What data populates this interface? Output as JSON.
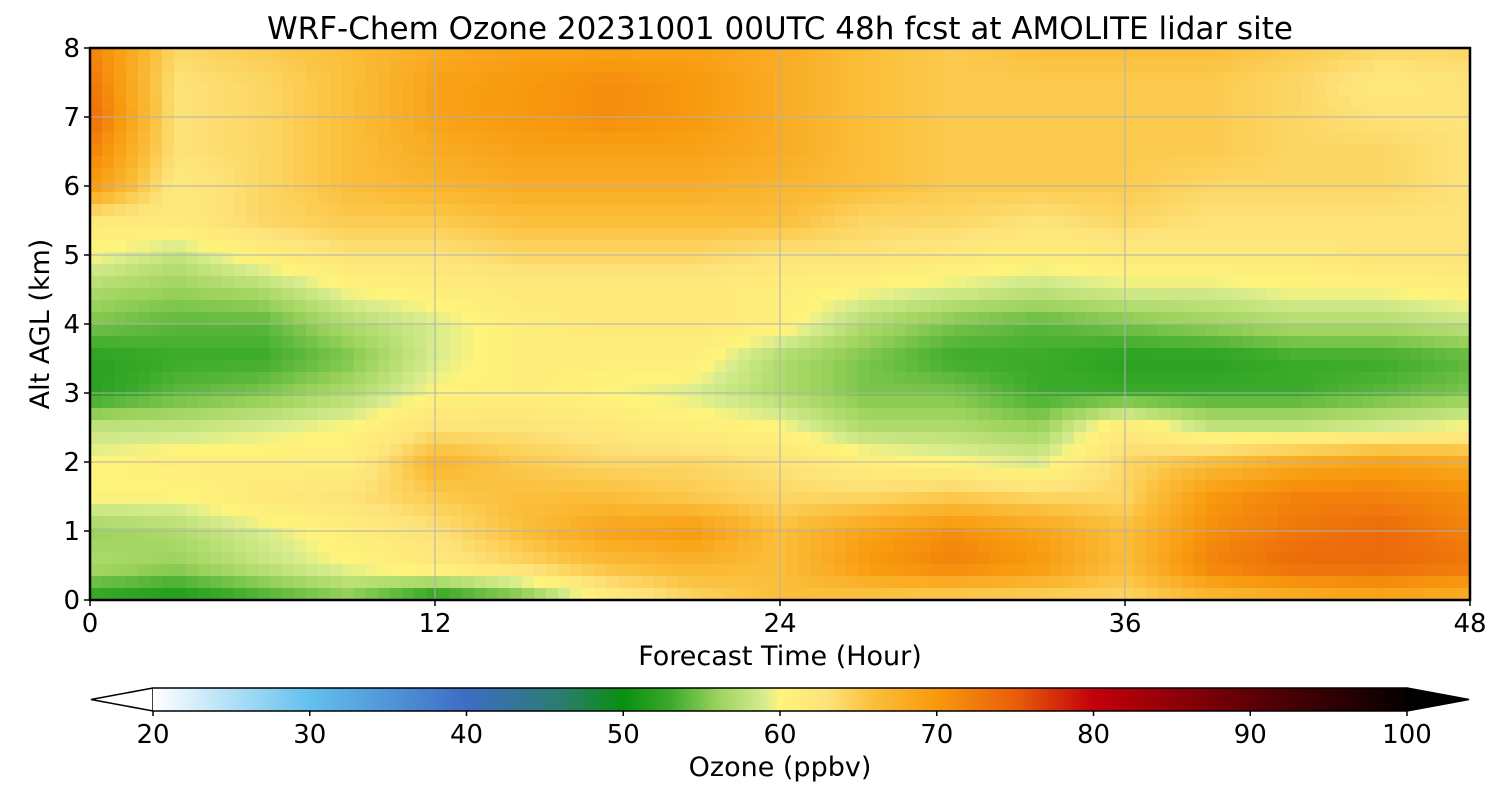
{
  "chart_data": {
    "type": "heatmap",
    "title": "WRF-Chem Ozone  20231001 00UTC 48h fcst at AMOLITE lidar site",
    "xlabel": "Forecast Time (Hour)",
    "ylabel": "Alt AGL (km)",
    "xlim": [
      0,
      48
    ],
    "ylim": [
      0,
      8
    ],
    "x_ticks": [
      "0",
      "12",
      "24",
      "36",
      "48"
    ],
    "y_ticks": [
      "0",
      "1",
      "2",
      "3",
      "4",
      "5",
      "6",
      "7",
      "8"
    ],
    "grid": true,
    "x_hours": [
      0,
      3,
      6,
      9,
      12,
      15,
      18,
      21,
      24,
      27,
      30,
      33,
      36,
      39,
      42,
      45,
      48
    ],
    "y_km": [
      0,
      0.5,
      1,
      1.5,
      2,
      2.5,
      3,
      3.5,
      4,
      4.5,
      5,
      5.5,
      6,
      6.5,
      7,
      7.5,
      8
    ],
    "ozone_ppbv": [
      [
        52,
        51,
        53,
        55,
        51,
        54,
        61,
        64,
        66,
        65,
        64,
        64,
        64,
        66,
        67,
        68,
        67
      ],
      [
        57,
        56,
        58,
        60,
        62,
        64,
        66,
        67,
        66,
        70,
        72,
        70,
        66,
        72,
        74,
        74,
        73
      ],
      [
        56,
        57,
        59,
        61,
        63,
        66,
        69,
        70,
        66,
        69,
        71,
        69,
        66,
        71,
        73,
        74,
        72
      ],
      [
        60,
        60,
        62,
        63,
        65,
        66,
        66,
        65,
        64,
        64,
        65,
        64,
        64,
        70,
        72,
        72,
        71
      ],
      [
        60,
        61,
        61,
        61,
        67,
        65,
        64,
        64,
        63,
        61,
        60,
        59,
        64,
        66,
        68,
        69,
        68
      ],
      [
        58,
        58,
        59,
        60,
        63,
        63,
        62,
        61,
        60,
        57,
        57,
        56,
        62,
        58,
        58,
        59,
        60
      ],
      [
        52,
        54,
        55,
        57,
        60,
        61,
        60,
        59,
        57,
        55,
        55,
        53,
        53,
        53,
        53,
        54,
        55
      ],
      [
        52,
        53,
        53,
        55,
        59,
        61,
        61,
        61,
        57,
        55,
        53,
        53,
        52,
        52,
        53,
        53,
        54
      ],
      [
        55,
        54,
        54,
        57,
        59,
        61,
        62,
        62,
        61,
        57,
        55,
        54,
        55,
        56,
        57,
        57,
        58
      ],
      [
        57,
        56,
        57,
        60,
        61,
        62,
        62,
        62,
        61,
        60,
        59,
        58,
        59,
        59,
        60,
        60,
        61
      ],
      [
        60,
        58,
        61,
        63,
        63,
        64,
        64,
        64,
        63,
        63,
        62,
        61,
        62,
        62,
        62,
        63,
        63
      ],
      [
        62,
        62,
        64,
        65,
        65,
        66,
        66,
        66,
        66,
        64,
        64,
        63,
        64,
        63,
        63,
        63,
        63
      ],
      [
        70,
        62,
        64,
        66,
        67,
        68,
        68,
        68,
        67,
        66,
        65,
        65,
        65,
        64,
        64,
        64,
        63
      ],
      [
        72,
        63,
        64,
        66,
        68,
        69,
        69,
        69,
        68,
        66,
        65,
        65,
        65,
        65,
        64,
        64,
        63
      ],
      [
        74,
        63,
        64,
        66,
        69,
        70,
        71,
        70,
        68,
        66,
        65,
        65,
        65,
        65,
        64,
        63,
        63
      ],
      [
        73,
        63,
        64,
        66,
        69,
        70,
        71,
        70,
        68,
        66,
        65,
        65,
        65,
        65,
        64,
        62,
        63
      ],
      [
        72,
        64,
        65,
        66,
        68,
        69,
        69,
        69,
        68,
        66,
        65,
        66,
        66,
        66,
        65,
        64,
        64
      ]
    ],
    "colorbar": {
      "label": "Ozone  (ppbv)",
      "ticks": [
        "20",
        "30",
        "40",
        "50",
        "60",
        "70",
        "80",
        "90",
        "100"
      ],
      "min": 20,
      "max": 100,
      "extend": "both",
      "colors": {
        "low_fill": "#ffffff",
        "v20": "#ffffff",
        "v30": "#63c0ee",
        "v40": "#3d6cc4",
        "v46": "#2a7d70",
        "v50": "#098f0e",
        "v53": "#3aaa2a",
        "v56": "#9bd25c",
        "v59": "#d7ec8e",
        "v60": "#fff47b",
        "v63": "#fde37a",
        "v66": "#fbbe3a",
        "v70": "#f8990d",
        "v75": "#e95e0a",
        "v80": "#c3000a",
        "v90": "#5e0006",
        "v100": "#050000",
        "high_fill": "#000000"
      }
    }
  }
}
